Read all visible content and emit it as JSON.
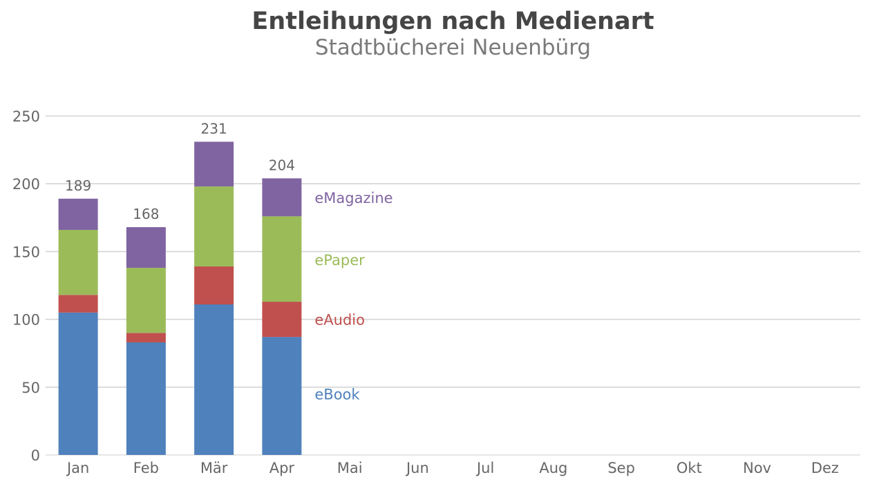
{
  "chart_data": {
    "type": "bar",
    "stacked": true,
    "title": "Entleihungen nach Medienart",
    "subtitle": "Stadtbücherei Neuenbürg",
    "xlabel": "",
    "ylabel": "",
    "ylim": [
      0,
      250
    ],
    "yticks": [
      0,
      50,
      100,
      150,
      200,
      250
    ],
    "grid": "horizontal",
    "legend": "inline-right-of-last-bar",
    "categories": [
      "Jan",
      "Feb",
      "Mär",
      "Apr",
      "Mai",
      "Jun",
      "Jul",
      "Aug",
      "Sep",
      "Okt",
      "Nov",
      "Dez"
    ],
    "series": [
      {
        "name": "eBook",
        "color": "#4f81bd",
        "values": [
          105,
          83,
          111,
          87,
          null,
          null,
          null,
          null,
          null,
          null,
          null,
          null
        ]
      },
      {
        "name": "eAudio",
        "color": "#c0504d",
        "values": [
          13,
          7,
          28,
          26,
          null,
          null,
          null,
          null,
          null,
          null,
          null,
          null
        ]
      },
      {
        "name": "ePaper",
        "color": "#9bbb59",
        "values": [
          48,
          48,
          59,
          63,
          null,
          null,
          null,
          null,
          null,
          null,
          null,
          null
        ]
      },
      {
        "name": "eMagazine",
        "color": "#8064a2",
        "values": [
          23,
          30,
          33,
          28,
          null,
          null,
          null,
          null,
          null,
          null,
          null,
          null
        ]
      }
    ],
    "totals": [
      189,
      168,
      231,
      204,
      null,
      null,
      null,
      null,
      null,
      null,
      null,
      null
    ]
  }
}
